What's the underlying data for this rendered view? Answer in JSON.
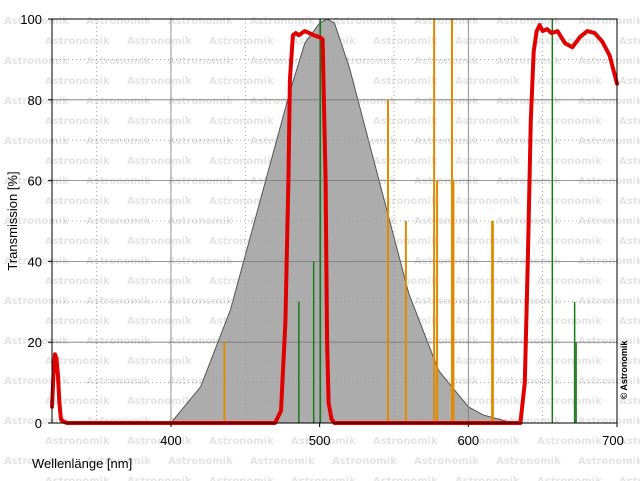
{
  "chart_data": {
    "type": "line",
    "title": "",
    "xlabel": "Wellenlänge [nm]",
    "ylabel": "Transmission [%]",
    "xlim": [
      320,
      700
    ],
    "ylim": [
      0,
      100
    ],
    "xticks": [
      400,
      500,
      600,
      700
    ],
    "yticks": [
      0,
      20,
      40,
      60,
      80,
      100
    ],
    "grid": true,
    "watermark": "Astronomik",
    "copyright": "© Astronomik",
    "colors": {
      "filter_curve": "#e00000",
      "eye_sensitivity_fill": "#a8a8a8",
      "eye_sensitivity_edge": "#555555",
      "sodium_lines": "#e08a00",
      "green_lines": "#1a7a1a"
    },
    "series": [
      {
        "kind": "filter",
        "x": [
          320,
          321,
          322,
          323,
          324,
          325,
          326,
          327,
          330,
          335,
          400,
          470,
          474,
          477,
          479,
          480,
          482,
          484,
          486,
          488,
          490,
          493,
          496,
          500,
          502,
          504,
          505,
          506,
          508,
          510,
          515,
          520,
          600,
          635,
          638,
          640,
          642,
          644,
          646,
          648,
          650,
          653,
          656,
          660,
          665,
          670,
          675,
          680,
          685,
          690,
          695,
          700
        ],
        "values": [
          4,
          12,
          17,
          16,
          12,
          5,
          1,
          0.5,
          0,
          0,
          0,
          0,
          3,
          25,
          60,
          85,
          96,
          96.5,
          96,
          96.5,
          97,
          96.5,
          96,
          95.5,
          95,
          60,
          20,
          5,
          1,
          0,
          0,
          0,
          0,
          0,
          10,
          40,
          75,
          92,
          97,
          98.5,
          97,
          97.5,
          96.5,
          97,
          94,
          93,
          95.5,
          97,
          96.5,
          94.5,
          91,
          84
        ]
      },
      {
        "kind": "eye-sensitivity",
        "x": [
          380,
          400,
          420,
          440,
          460,
          480,
          490,
          500,
          505,
          510,
          520,
          540,
          560,
          580,
          600,
          610,
          620,
          630
        ],
        "values": [
          0,
          0,
          9,
          28,
          55,
          82,
          94,
          99,
          100,
          99,
          88,
          60,
          32,
          13,
          4,
          2,
          1,
          0
        ]
      }
    ],
    "emission_lines": [
      {
        "color": "orange",
        "x": 436,
        "value": 20
      },
      {
        "color": "green",
        "x": 486,
        "value": 30
      },
      {
        "color": "green",
        "x": 496,
        "value": 40
      },
      {
        "color": "green",
        "x": 500.5,
        "value": 100
      },
      {
        "color": "orange",
        "x": 546,
        "value": 80
      },
      {
        "color": "orange",
        "x": 558,
        "value": 50
      },
      {
        "color": "orange",
        "x": 577,
        "value": 100
      },
      {
        "color": "orange",
        "x": 579,
        "value": 60
      },
      {
        "color": "orange",
        "x": 589,
        "value": 100
      },
      {
        "color": "orange",
        "x": 590,
        "value": 60
      },
      {
        "color": "orange",
        "x": 616,
        "value": 50
      },
      {
        "color": "orange",
        "x": 616.5,
        "value": 50
      },
      {
        "color": "green",
        "x": 656.5,
        "value": 100
      },
      {
        "color": "green",
        "x": 671.5,
        "value": 30
      },
      {
        "color": "green",
        "x": 672.5,
        "value": 20
      }
    ]
  }
}
